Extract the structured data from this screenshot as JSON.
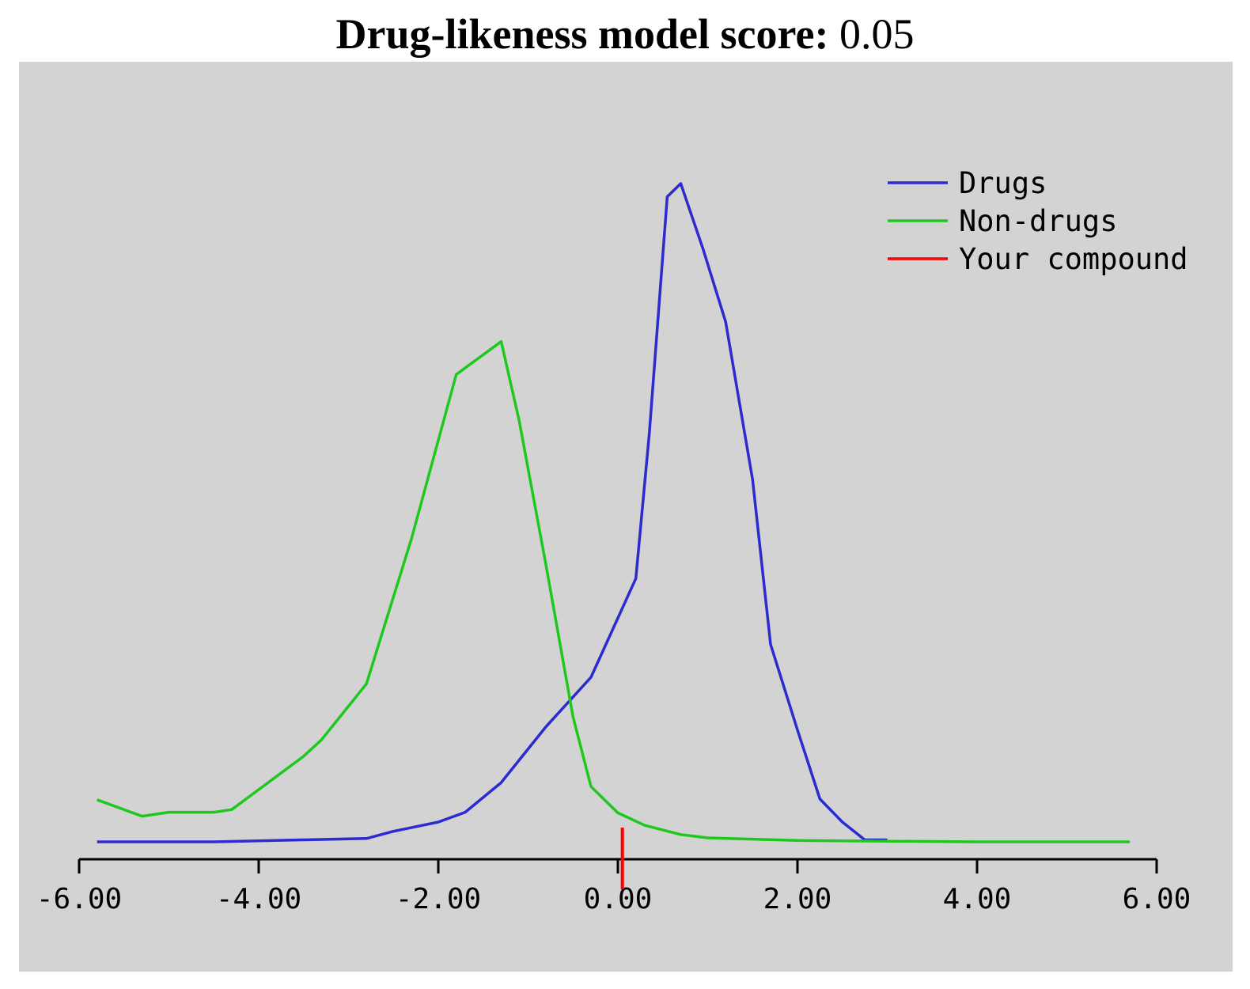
{
  "title": {
    "label": "Drug-likeness model score:",
    "value": "0.05"
  },
  "chart_data": {
    "type": "line",
    "xlim": [
      -6,
      6
    ],
    "ylim": [
      0,
      1
    ],
    "x_ticks": [
      "-6.00",
      "-4.00",
      "-2.00",
      "0.00",
      "2.00",
      "4.00",
      "6.00"
    ],
    "y_axis_shown": false,
    "grid": false,
    "legend_position": "top-right",
    "series": [
      {
        "name": "Drugs",
        "color": "#2b2bd0",
        "points": [
          [
            -5.8,
            0.0
          ],
          [
            -5.3,
            0.0
          ],
          [
            -4.5,
            0.0
          ],
          [
            -3.5,
            0.003
          ],
          [
            -2.8,
            0.005
          ],
          [
            -2.5,
            0.016
          ],
          [
            -2.0,
            0.03
          ],
          [
            -1.7,
            0.045
          ],
          [
            -1.3,
            0.09
          ],
          [
            -0.8,
            0.175
          ],
          [
            -0.3,
            0.25
          ],
          [
            0.2,
            0.4
          ],
          [
            0.35,
            0.62
          ],
          [
            0.55,
            0.98
          ],
          [
            0.7,
            1.0
          ],
          [
            0.95,
            0.9
          ],
          [
            1.2,
            0.79
          ],
          [
            1.5,
            0.55
          ],
          [
            1.7,
            0.3
          ],
          [
            2.0,
            0.17
          ],
          [
            2.25,
            0.065
          ],
          [
            2.5,
            0.03
          ],
          [
            2.75,
            0.003
          ],
          [
            3.0,
            0.003
          ]
        ]
      },
      {
        "name": "Non-drugs",
        "color": "#1ec81e",
        "points": [
          [
            -5.8,
            0.064
          ],
          [
            -5.3,
            0.039
          ],
          [
            -5.0,
            0.045
          ],
          [
            -4.5,
            0.045
          ],
          [
            -4.3,
            0.049
          ],
          [
            -3.5,
            0.13
          ],
          [
            -3.3,
            0.155
          ],
          [
            -2.8,
            0.24
          ],
          [
            -2.3,
            0.46
          ],
          [
            -1.8,
            0.71
          ],
          [
            -1.3,
            0.76
          ],
          [
            -1.1,
            0.64
          ],
          [
            -0.8,
            0.42
          ],
          [
            -0.5,
            0.19
          ],
          [
            -0.3,
            0.084
          ],
          [
            0.0,
            0.044
          ],
          [
            0.3,
            0.025
          ],
          [
            0.7,
            0.011
          ],
          [
            1.0,
            0.006
          ],
          [
            2.0,
            0.002
          ],
          [
            4.0,
            0.0
          ],
          [
            5.7,
            0.0
          ]
        ]
      }
    ],
    "marker": {
      "name": "Your compound",
      "x": 0.05,
      "color": "#ff0000"
    }
  }
}
